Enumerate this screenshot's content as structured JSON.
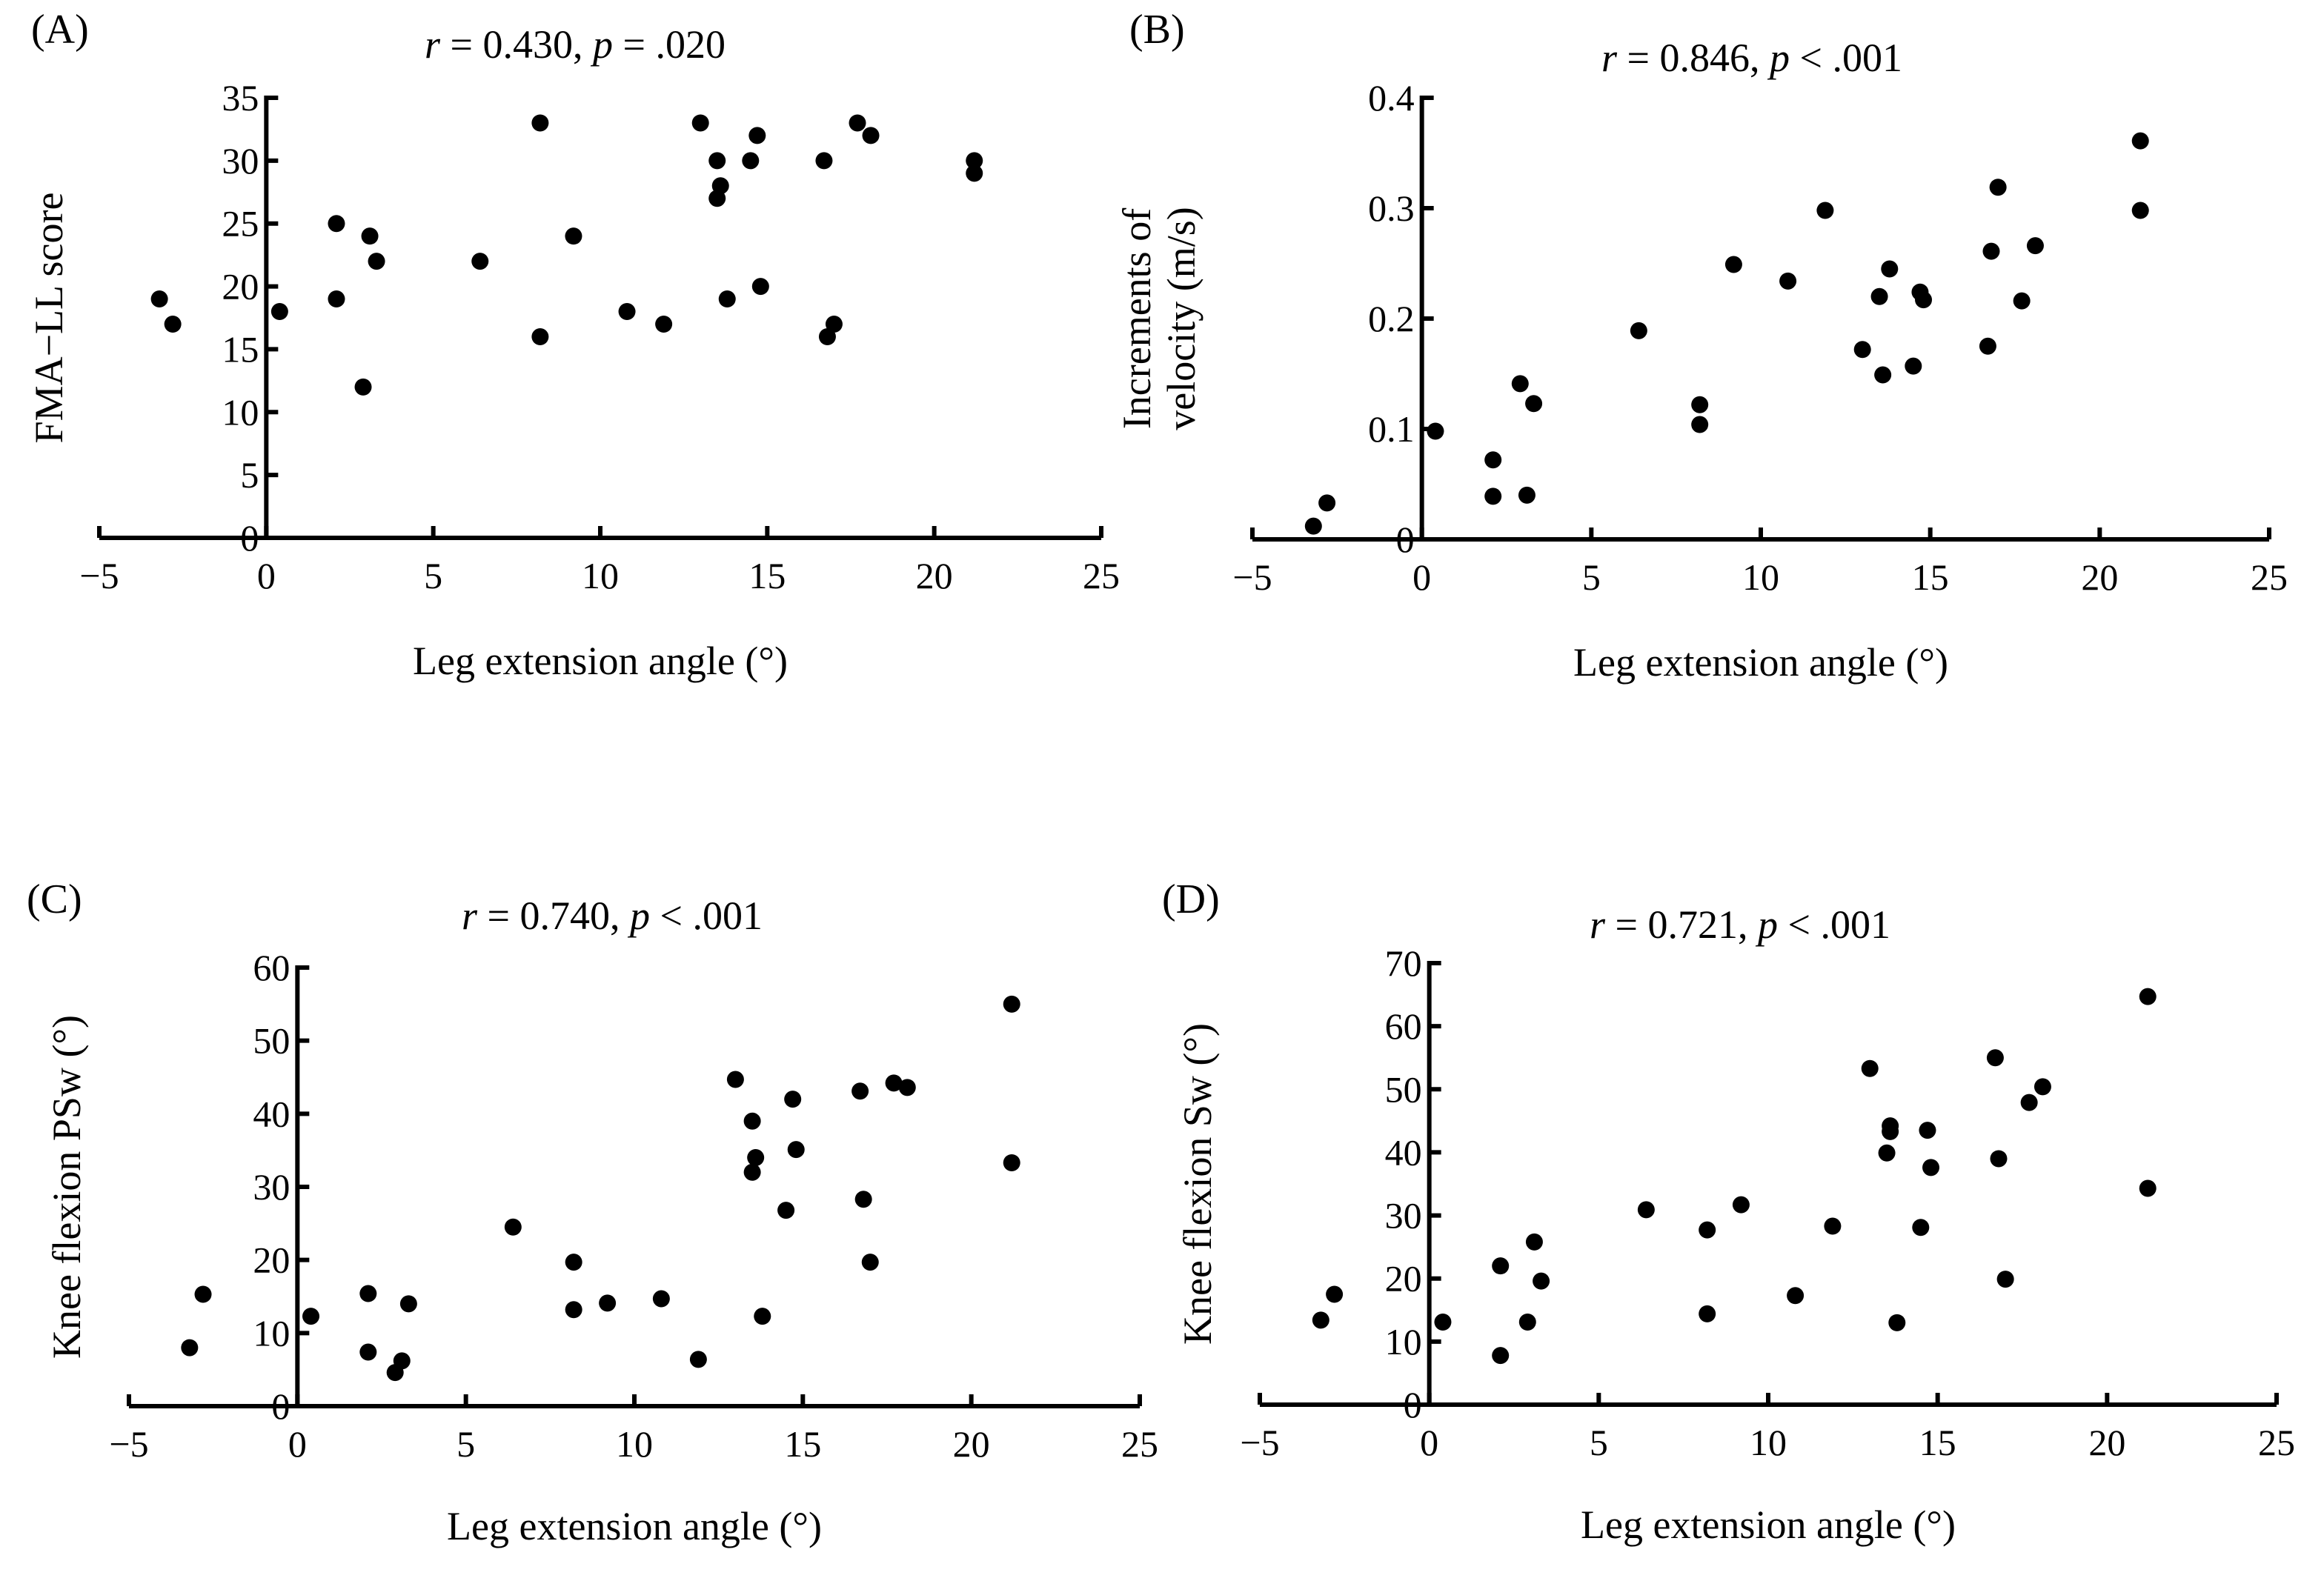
{
  "colors": {
    "marker": "#000000",
    "axis": "#000000",
    "background": "#ffffff"
  },
  "chart_data": [
    {
      "type": "scatter",
      "panel": "(A)",
      "title": {
        "r_symbol": "r",
        "r_text": " = 0.430, ",
        "p_symbol": "p",
        "p_text": " = .020"
      },
      "xlabel": "Leg extension angle (°)",
      "ylabel": [
        "FMA−LL score"
      ],
      "xlim": [
        -5,
        25
      ],
      "ylim": [
        0,
        35
      ],
      "xticks": [
        -5,
        0,
        5,
        10,
        15,
        20,
        25
      ],
      "yticks": [
        0,
        5,
        10,
        15,
        20,
        25,
        30,
        35
      ],
      "x": [
        -3.2,
        -2.8,
        0.4,
        2.1,
        2.1,
        2.9,
        3.1,
        3.3,
        6.4,
        8.2,
        8.2,
        9.2,
        10.8,
        11.9,
        13.0,
        13.5,
        13.5,
        13.6,
        13.8,
        14.5,
        14.7,
        14.8,
        16.7,
        16.8,
        17.0,
        17.7,
        18.1,
        21.2,
        21.2
      ],
      "y": [
        19,
        17,
        18,
        25,
        19,
        12,
        24,
        22,
        22,
        33,
        16,
        24,
        18,
        17,
        33,
        30,
        27,
        28,
        19,
        30,
        32,
        20,
        30,
        16,
        17,
        33,
        32,
        30,
        29
      ]
    },
    {
      "type": "scatter",
      "panel": "(B)",
      "title": {
        "r_symbol": "r",
        "r_text": " = 0.846, ",
        "p_symbol": "p",
        "p_text": " < .001"
      },
      "xlabel": "Leg extension angle (°)",
      "ylabel": [
        "Increments of",
        "velocity (m/s)"
      ],
      "xlim": [
        -5,
        25
      ],
      "ylim": [
        0,
        0.4
      ],
      "xticks": [
        -5,
        0,
        5,
        10,
        15,
        20,
        25
      ],
      "yticks": [
        0,
        0.1,
        0.2,
        0.3,
        0.4
      ],
      "x": [
        -3.2,
        -2.8,
        0.4,
        2.1,
        2.1,
        2.9,
        3.1,
        3.3,
        6.4,
        8.2,
        8.2,
        9.2,
        10.8,
        11.9,
        13.0,
        13.5,
        13.6,
        13.8,
        14.5,
        14.7,
        14.8,
        16.7,
        16.8,
        17.0,
        17.7,
        18.1,
        21.2,
        21.2
      ],
      "y": [
        0.012,
        0.033,
        0.098,
        0.072,
        0.039,
        0.141,
        0.04,
        0.123,
        0.189,
        0.122,
        0.104,
        0.249,
        0.234,
        0.298,
        0.172,
        0.22,
        0.149,
        0.245,
        0.157,
        0.224,
        0.217,
        0.175,
        0.261,
        0.319,
        0.216,
        0.266,
        0.361,
        0.298
      ]
    },
    {
      "type": "scatter",
      "panel": "(C)",
      "title": {
        "r_symbol": "r",
        "r_text": " = 0.740, ",
        "p_symbol": "p",
        "p_text": " < .001"
      },
      "xlabel": "Leg extension angle (°)",
      "ylabel": [
        "Knee flexion PSw (°)"
      ],
      "xlim": [
        -5,
        25
      ],
      "ylim": [
        0,
        60
      ],
      "xticks": [
        -5,
        0,
        5,
        10,
        15,
        20,
        25
      ],
      "yticks": [
        0,
        10,
        20,
        30,
        40,
        50,
        60
      ],
      "x": [
        -3.2,
        -2.8,
        0.4,
        2.1,
        2.1,
        2.9,
        3.1,
        3.3,
        6.4,
        8.2,
        8.2,
        9.2,
        10.8,
        11.9,
        13.0,
        13.5,
        13.5,
        13.6,
        13.8,
        14.5,
        14.7,
        14.8,
        16.7,
        16.8,
        17.0,
        17.7,
        18.1,
        21.2,
        21.2
      ],
      "y": [
        8,
        15.3,
        12.3,
        15.4,
        7.4,
        4.6,
        6.2,
        14,
        24.5,
        19.7,
        13.2,
        14.1,
        14.7,
        6.4,
        44.7,
        39,
        32,
        34,
        12.3,
        26.8,
        42,
        35.1,
        43.1,
        28.3,
        19.7,
        44.2,
        43.6,
        55,
        33.3
      ]
    },
    {
      "type": "scatter",
      "panel": "(D)",
      "title": {
        "r_symbol": "r",
        "r_text": " = 0.721, ",
        "p_symbol": "p",
        "p_text": " < .001"
      },
      "xlabel": "Leg extension angle (°)",
      "ylabel": [
        "Knee flexion Sw (°)"
      ],
      "xlim": [
        -5,
        25
      ],
      "ylim": [
        0,
        70
      ],
      "xticks": [
        -5,
        0,
        5,
        10,
        15,
        20,
        25
      ],
      "yticks": [
        0,
        10,
        20,
        30,
        40,
        50,
        60,
        70
      ],
      "x": [
        -3.2,
        -2.8,
        0.4,
        2.1,
        2.1,
        2.9,
        3.1,
        3.3,
        6.4,
        8.2,
        8.2,
        9.2,
        10.8,
        11.9,
        13.0,
        13.5,
        13.6,
        13.6,
        13.8,
        14.5,
        14.7,
        14.8,
        16.7,
        16.8,
        17.0,
        17.7,
        18.1,
        21.2,
        21.2
      ],
      "y": [
        13.4,
        17.5,
        13.1,
        22,
        7.8,
        13.1,
        25.8,
        19.6,
        30.9,
        27.7,
        14.4,
        31.7,
        17.3,
        28.3,
        53.3,
        39.9,
        44.2,
        43.3,
        13,
        28.1,
        43.5,
        37.6,
        55,
        39,
        19.9,
        47.9,
        50.4,
        64.7,
        34.3
      ]
    }
  ]
}
